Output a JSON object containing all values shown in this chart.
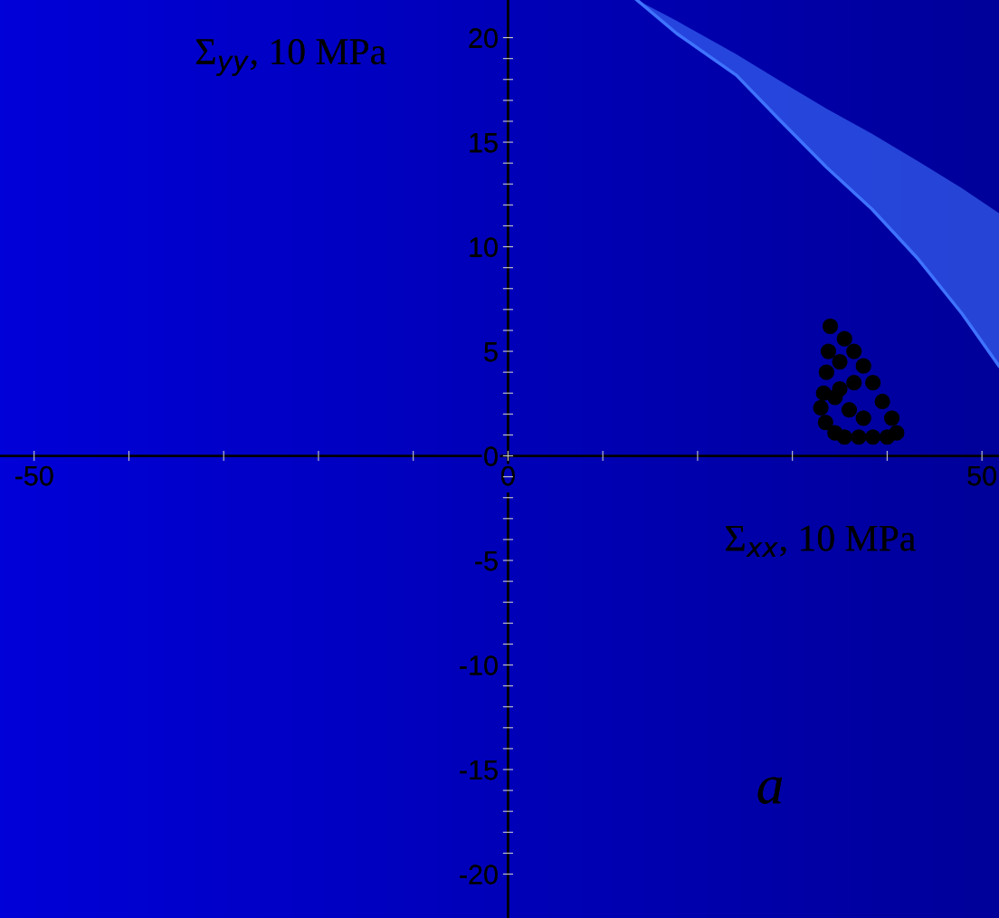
{
  "chart_data": {
    "type": "scatter",
    "xlabel": "Σ$_{xx}$, 10 MPa",
    "ylabel": "Σ$_{yy}$, 10 MPa",
    "xlim": [
      -53.6,
      51.8
    ],
    "ylim": [
      -22.1,
      21.8
    ],
    "xticks": [
      -50,
      {
        "value": -40,
        "label": null
      },
      {
        "value": -30,
        "label": null
      },
      {
        "value": -20,
        "label": null
      },
      {
        "value": -10,
        "label": null
      },
      0,
      {
        "value": 10,
        "label": null
      },
      {
        "value": 20,
        "label": null
      },
      {
        "value": 30,
        "label": null
      },
      {
        "value": 40,
        "label": null
      },
      50
    ],
    "yticks": [
      -20,
      {
        "value": -19,
        "label": null
      },
      {
        "value": -18,
        "label": null
      },
      {
        "value": -17,
        "label": null
      },
      {
        "value": -16,
        "label": null
      },
      -15,
      {
        "value": -14,
        "label": null
      },
      {
        "value": -13,
        "label": null
      },
      {
        "value": -12,
        "label": null
      },
      {
        "value": -11,
        "label": null
      },
      -10,
      {
        "value": -9,
        "label": null
      },
      {
        "value": -8,
        "label": null
      },
      {
        "value": -7,
        "label": null
      },
      {
        "value": -6,
        "label": null
      },
      -5,
      {
        "value": -4,
        "label": null
      },
      {
        "value": -3,
        "label": null
      },
      {
        "value": -2,
        "label": null
      },
      {
        "value": -1,
        "label": null
      },
      0,
      {
        "value": 1,
        "label": null
      },
      {
        "value": 2,
        "label": null
      },
      {
        "value": 3,
        "label": null
      },
      {
        "value": 4,
        "label": null
      },
      5,
      {
        "value": 6,
        "label": null
      },
      {
        "value": 7,
        "label": null
      },
      {
        "value": 8,
        "label": null
      },
      {
        "value": 9,
        "label": null
      },
      10,
      {
        "value": 11,
        "label": null
      },
      {
        "value": 12,
        "label": null
      },
      {
        "value": 13,
        "label": null
      },
      {
        "value": 14,
        "label": null
      },
      15,
      {
        "value": 16,
        "label": null
      },
      {
        "value": 17,
        "label": null
      },
      {
        "value": 18,
        "label": null
      },
      {
        "value": 19,
        "label": null
      },
      20
    ],
    "grid": false,
    "legend": false,
    "annotations": [
      "a"
    ],
    "series": [
      {
        "type": "line",
        "color": "#3f73ff",
        "x": [
          13.6,
          17.8,
          24.1,
          28.8,
          33.6,
          38.4,
          43.2,
          47.9,
          51.8
        ],
        "values": [
          21.8,
          20.2,
          18.2,
          16.0,
          13.8,
          11.8,
          9.45,
          6.8,
          4.3
        ],
        "lower": [
          21.8,
          20.2,
          18.2,
          16.0,
          13.8,
          11.8,
          9.45,
          6.8,
          4.3
        ],
        "upper": [
          21.8,
          20.8,
          19.2,
          17.9,
          16.6,
          15.4,
          14.1,
          12.8,
          11.6
        ]
      },
      {
        "color": "#000000",
        "marker": "circle",
        "x": [
          34.0,
          33.8,
          33.6,
          33.3,
          33.0,
          33.5,
          34.5,
          35.5,
          37.0,
          38.5,
          40.0,
          41.0,
          40.5,
          39.5,
          38.5,
          37.5,
          36.5,
          35.5,
          35.0,
          35.0,
          36.0,
          37.5,
          34.5,
          36.5
        ],
        "values": [
          6.2,
          5.0,
          4.0,
          3.0,
          2.3,
          1.6,
          1.1,
          0.9,
          0.9,
          0.9,
          0.9,
          1.1,
          1.8,
          2.6,
          3.5,
          4.3,
          5.0,
          5.6,
          4.5,
          3.2,
          2.2,
          1.8,
          2.8,
          3.5
        ]
      }
    ]
  }
}
